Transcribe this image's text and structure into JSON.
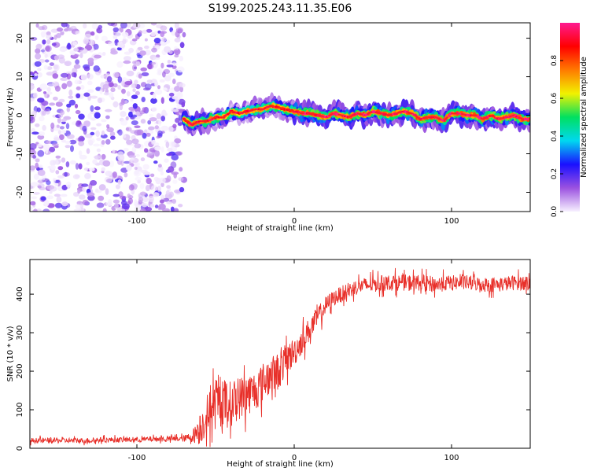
{
  "figure_title": "S199.2025.243.11.35.E06",
  "chart_data": [
    {
      "type": "heatmap",
      "title": "",
      "xlabel": "Height of straight line (km)",
      "ylabel": "Frequency (Hz)",
      "xlim": [
        -168,
        150
      ],
      "ylim": [
        -25,
        24
      ],
      "xticks": [
        -100,
        0,
        100
      ],
      "yticks": [
        -20,
        -10,
        0,
        10,
        20
      ],
      "grid": false,
      "noise_region_x": [
        -168,
        -70
      ],
      "ridge": {
        "x": [
          -70,
          -65,
          -60,
          -55,
          -50,
          -45,
          -40,
          -35,
          -30,
          -25,
          -20,
          -15,
          -10,
          -5,
          0,
          5,
          10,
          15,
          20,
          25,
          30,
          35,
          40,
          45,
          50,
          55,
          60,
          65,
          70,
          75,
          80,
          85,
          90,
          95,
          100,
          105,
          110,
          115,
          120,
          125,
          130,
          135,
          140,
          145,
          150
        ],
        "freq": [
          -1,
          -2.5,
          -1.5,
          -1.5,
          -0.5,
          -0.5,
          1,
          0.5,
          1,
          1.5,
          1.5,
          2.5,
          2,
          1.5,
          1,
          0.5,
          0.5,
          0,
          -0.5,
          0.5,
          0,
          -0.5,
          0.5,
          0,
          1,
          0.5,
          0,
          0.5,
          1,
          0.5,
          -1,
          -0.5,
          -0.5,
          -1.5,
          0.5,
          0.5,
          0,
          0,
          -1,
          0,
          -1,
          -0.5,
          0,
          -1,
          -1
        ]
      },
      "colorbar": {
        "label": "Normalized spectral amplitude",
        "range": [
          0,
          1
        ],
        "ticks": [
          0.0,
          0.2,
          0.4,
          0.6,
          0.8
        ],
        "tick_labels": [
          "0.0",
          "0.2",
          "0.4",
          "0.6",
          "0.8"
        ],
        "colors": [
          "#f7f0ff",
          "#9b52e0",
          "#1a10ff",
          "#00d8f0",
          "#00e060",
          "#f2f200",
          "#ff7a00",
          "#ff0000",
          "#ff1a90"
        ]
      }
    },
    {
      "type": "line",
      "title": "",
      "xlabel": "Height of straight line (km)",
      "ylabel": "SNR (10 * v/v)",
      "xlim": [
        -168,
        150
      ],
      "ylim": [
        0,
        490
      ],
      "xticks": [
        -100,
        0,
        100
      ],
      "yticks": [
        0,
        100,
        200,
        300,
        400
      ],
      "grid": false,
      "series": [
        {
          "name": "SNR",
          "color": "#e8302a",
          "x": [
            -168,
            -160,
            -150,
            -140,
            -130,
            -120,
            -110,
            -100,
            -90,
            -80,
            -70,
            -65,
            -60,
            -55,
            -50,
            -45,
            -40,
            -35,
            -30,
            -25,
            -20,
            -15,
            -10,
            -5,
            0,
            5,
            10,
            15,
            20,
            25,
            30,
            35,
            40,
            50,
            60,
            70,
            80,
            90,
            100,
            110,
            120,
            130,
            140,
            150
          ],
          "y": [
            20,
            20,
            20,
            20,
            20,
            22,
            22,
            22,
            24,
            24,
            25,
            30,
            50,
            90,
            110,
            120,
            115,
            130,
            140,
            150,
            170,
            190,
            200,
            230,
            250,
            280,
            310,
            340,
            370,
            390,
            400,
            410,
            420,
            425,
            430,
            430,
            430,
            425,
            430,
            430,
            425,
            425,
            430,
            430
          ],
          "noise": [
            10,
            10,
            10,
            10,
            10,
            10,
            10,
            10,
            10,
            10,
            12,
            20,
            60,
            80,
            90,
            90,
            85,
            80,
            80,
            75,
            75,
            70,
            70,
            60,
            55,
            50,
            45,
            40,
            35,
            30,
            30,
            30,
            30,
            30,
            30,
            30,
            30,
            30,
            28,
            28,
            28,
            28,
            28,
            28
          ]
        }
      ]
    }
  ]
}
